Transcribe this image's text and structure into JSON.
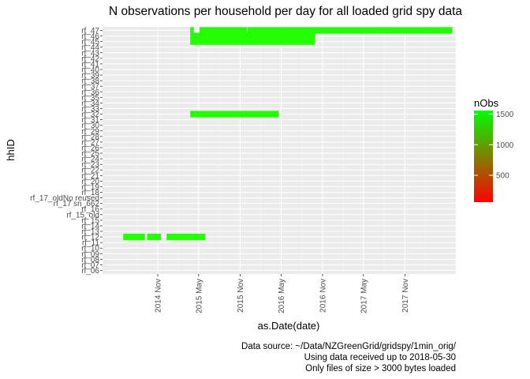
{
  "chart_data": {
    "type": "heatmap",
    "title": "N observations per household per day for all loaded grid spy data",
    "xlabel": "as.Date(date)",
    "ylabel": "hhID",
    "x_tick_labels": [
      "2014 Nov",
      "2015 May",
      "2015 Nov",
      "2016 May",
      "2016 Nov",
      "2017 May",
      "2017 Nov"
    ],
    "x_tick_dates": [
      "2014-11-01",
      "2015-05-01",
      "2015-11-01",
      "2016-05-01",
      "2016-11-01",
      "2017-05-01",
      "2017-11-01"
    ],
    "xlim": [
      "2014-03-01",
      "2018-06-15"
    ],
    "households": [
      "rf_06",
      "rf_07",
      "rf_08",
      "rf_09",
      "rf_10",
      "rf_11",
      "rf_12",
      "rf_13",
      "rf_14",
      "rf_15",
      "rf_15_old",
      "rf_16",
      "rf_17 sn_662",
      "rf_17_oldNo reused",
      "rf_18",
      "rf_19",
      "rf_20",
      "rf_21",
      "rf_22",
      "rf_23",
      "rf_24",
      "rf_25",
      "rf_26",
      "rf_27",
      "rf_28",
      "rf_29",
      "rf_30",
      "rf_31",
      "rf_32",
      "rf_33",
      "rf_34",
      "rf_35",
      "rf_36",
      "rf_37",
      "rf_38",
      "rf_39",
      "rf_40",
      "rf_41",
      "rf_42",
      "rf_43",
      "rf_44",
      "rf_45",
      "rf_46",
      "rf_47"
    ],
    "segments": [
      {
        "hhID": "rf_12",
        "start": "2014-06-01",
        "end": "2014-09-05",
        "nObs": 1440
      },
      {
        "hhID": "rf_12",
        "start": "2014-09-15",
        "end": "2014-11-15",
        "nObs": 1440
      },
      {
        "hhID": "rf_12",
        "start": "2014-12-10",
        "end": "2015-05-31",
        "nObs": 1440
      },
      {
        "hhID": "rf_32",
        "start": "2015-03-25",
        "end": "2016-04-20",
        "nObs": 1440
      },
      {
        "hhID": "rf_45",
        "start": "2015-03-25",
        "end": "2016-09-28",
        "nObs": 1440
      },
      {
        "hhID": "rf_46",
        "start": "2015-03-25",
        "end": "2016-09-28",
        "nObs": 1440
      },
      {
        "hhID": "rf_47",
        "start": "2015-03-25",
        "end": "2015-04-10",
        "nObs": 1440
      },
      {
        "hhID": "rf_47",
        "start": "2015-05-05",
        "end": "2015-12-01",
        "nObs": 1440
      },
      {
        "hhID": "rf_47",
        "start": "2015-12-05",
        "end": "2018-05-30",
        "nObs": 1440
      }
    ],
    "grid": true,
    "legend": {
      "title": "nObs",
      "position": "right",
      "ticks": [
        500,
        1000,
        1500
      ],
      "range": [
        60,
        1560
      ],
      "colors": {
        "low": "#ff0000",
        "mid": "#808000",
        "high": "#00ff00"
      }
    }
  },
  "captions": [
    "Data source: ~/Data/NZGreenGrid/gridspy/1min_orig/",
    "Using data received up to 2018-05-30",
    "Only files of size > 3000 bytes loaded"
  ],
  "colors": {
    "panel": "#ebebeb",
    "grid": "#ffffff",
    "bar": "#22ff00"
  }
}
